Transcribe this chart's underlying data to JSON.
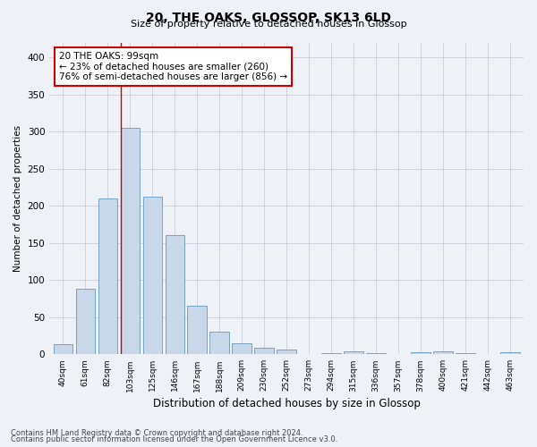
{
  "title1": "20, THE OAKS, GLOSSOP, SK13 6LD",
  "title2": "Size of property relative to detached houses in Glossop",
  "xlabel": "Distribution of detached houses by size in Glossop",
  "ylabel": "Number of detached properties",
  "categories": [
    "40sqm",
    "61sqm",
    "82sqm",
    "103sqm",
    "125sqm",
    "146sqm",
    "167sqm",
    "188sqm",
    "209sqm",
    "230sqm",
    "252sqm",
    "273sqm",
    "294sqm",
    "315sqm",
    "336sqm",
    "357sqm",
    "378sqm",
    "400sqm",
    "421sqm",
    "442sqm",
    "463sqm"
  ],
  "values": [
    14,
    88,
    210,
    305,
    212,
    160,
    65,
    30,
    15,
    9,
    6,
    0,
    2,
    4,
    2,
    0,
    3,
    4,
    2,
    0,
    3
  ],
  "bar_color": "#c8d8e8",
  "bar_edge_color": "#6699bb",
  "highlight_index": 3,
  "highlight_line_color": "#cc0000",
  "ylim": [
    0,
    420
  ],
  "yticks": [
    0,
    50,
    100,
    150,
    200,
    250,
    300,
    350,
    400
  ],
  "annotation_text": "20 THE OAKS: 99sqm\n← 23% of detached houses are smaller (260)\n76% of semi-detached houses are larger (856) →",
  "annotation_box_color": "#ffffff",
  "annotation_box_edge": "#cc0000",
  "footer1": "Contains HM Land Registry data © Crown copyright and database right 2024.",
  "footer2": "Contains public sector information licensed under the Open Government Licence v3.0.",
  "bg_color": "#eef2f7",
  "grid_color": "#c8cdd8"
}
